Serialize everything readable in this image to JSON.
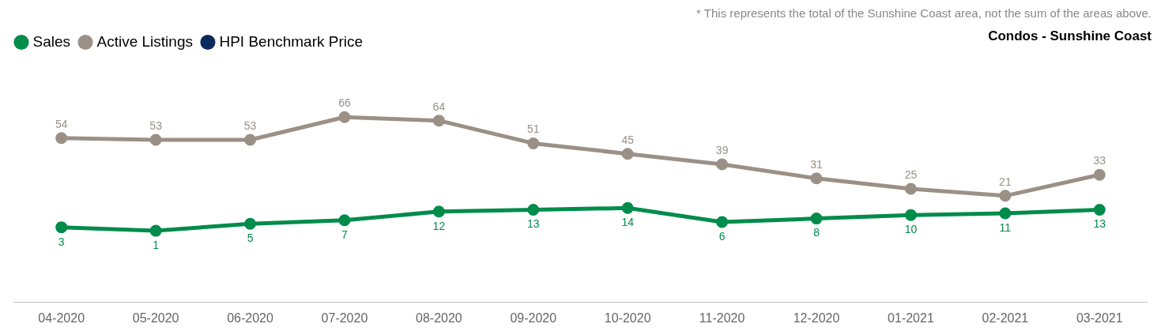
{
  "chart_data": {
    "type": "line",
    "title": "Condos - Sunshine Coast",
    "annotations": [
      "* This represents the total of the Sunshine Coast area, not the sum of the areas above."
    ],
    "categories": [
      "04-2020",
      "05-2020",
      "06-2020",
      "07-2020",
      "08-2020",
      "09-2020",
      "10-2020",
      "11-2020",
      "12-2020",
      "01-2021",
      "02-2021",
      "03-2021"
    ],
    "series": [
      {
        "name": "Sales",
        "color": "#008c4a",
        "values": [
          3,
          1,
          5,
          7,
          12,
          13,
          14,
          6,
          8,
          10,
          11,
          13
        ]
      },
      {
        "name": "Active Listings",
        "color": "#9b9086",
        "values": [
          54,
          53,
          53,
          66,
          64,
          51,
          45,
          39,
          31,
          25,
          21,
          33
        ]
      },
      {
        "name": "HPI Benchmark Price",
        "color": "#0b2a5e",
        "values": [
          null,
          null,
          null,
          null,
          null,
          null,
          null,
          null,
          null,
          null,
          null,
          null
        ]
      }
    ],
    "tick_labels": "x",
    "data_labels": true,
    "legend": "top left",
    "marker": "circle",
    "line_style": "solid",
    "grid": false
  }
}
